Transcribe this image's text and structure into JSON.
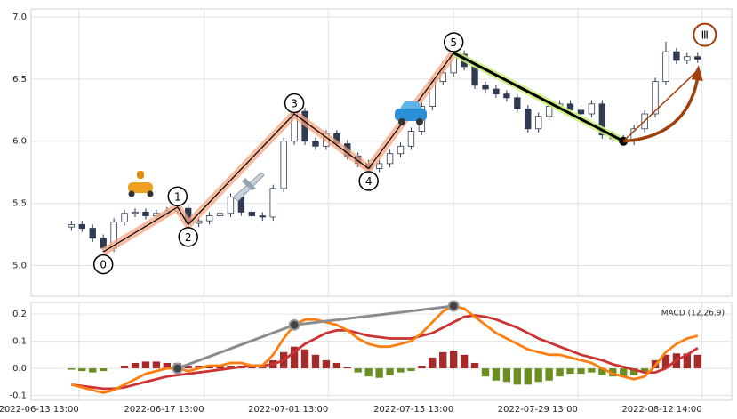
{
  "chart_data": [
    {
      "type": "candlestick",
      "open": [
        5.31,
        5.33,
        5.3,
        5.22,
        5.14,
        5.35,
        5.42,
        5.43,
        5.4,
        5.42,
        5.44,
        5.46,
        5.34,
        5.36,
        5.4,
        5.42,
        5.55,
        5.43,
        5.4,
        5.39,
        5.62,
        6.0,
        6.24,
        6.0,
        5.96,
        6.06,
        5.98,
        5.88,
        5.82,
        5.78,
        5.82,
        5.9,
        5.96,
        6.08,
        6.28,
        6.48,
        6.55,
        6.7,
        6.6,
        6.45,
        6.42,
        6.38,
        6.35,
        6.26,
        6.1,
        6.2,
        6.28,
        6.3,
        6.25,
        6.22,
        6.3,
        6.05,
        6.02,
        6.0,
        6.1,
        6.22,
        6.48,
        6.72,
        6.65,
        6.68
      ],
      "high": [
        5.36,
        5.36,
        5.33,
        5.25,
        5.38,
        5.45,
        5.46,
        5.46,
        5.45,
        5.47,
        5.49,
        5.49,
        5.39,
        5.43,
        5.45,
        5.58,
        5.58,
        5.46,
        5.43,
        5.65,
        6.03,
        6.38,
        6.27,
        6.03,
        6.09,
        6.09,
        6.01,
        5.91,
        5.85,
        5.85,
        5.93,
        5.99,
        6.11,
        6.31,
        6.51,
        6.58,
        6.73,
        6.73,
        6.63,
        6.48,
        6.45,
        6.41,
        6.38,
        6.29,
        6.23,
        6.31,
        6.33,
        6.33,
        6.28,
        6.33,
        6.33,
        6.08,
        6.05,
        6.13,
        6.25,
        6.51,
        6.8,
        6.75,
        6.71,
        6.71
      ],
      "low": [
        5.28,
        5.27,
        5.19,
        5.11,
        5.11,
        5.32,
        5.39,
        5.37,
        5.37,
        5.39,
        5.41,
        5.31,
        5.31,
        5.33,
        5.37,
        5.39,
        5.4,
        5.37,
        5.36,
        5.36,
        5.59,
        5.97,
        5.97,
        5.93,
        5.93,
        5.95,
        5.85,
        5.79,
        5.75,
        5.75,
        5.79,
        5.87,
        5.93,
        6.05,
        6.25,
        6.45,
        6.52,
        6.57,
        6.42,
        6.39,
        6.35,
        6.32,
        6.23,
        6.07,
        6.07,
        6.17,
        6.25,
        6.22,
        6.19,
        6.19,
        6.02,
        5.99,
        5.97,
        5.97,
        6.07,
        6.19,
        6.45,
        6.62,
        6.62,
        6.63
      ],
      "close": [
        5.33,
        5.3,
        5.22,
        5.14,
        5.35,
        5.42,
        5.43,
        5.4,
        5.42,
        5.44,
        5.46,
        5.34,
        5.36,
        5.4,
        5.42,
        5.55,
        5.43,
        5.4,
        5.39,
        5.62,
        6.0,
        6.24,
        6.0,
        5.96,
        6.06,
        5.98,
        5.88,
        5.82,
        5.78,
        5.82,
        5.9,
        5.96,
        6.08,
        6.28,
        6.48,
        6.55,
        6.7,
        6.6,
        6.45,
        6.42,
        6.38,
        6.35,
        6.26,
        6.1,
        6.2,
        6.28,
        6.3,
        6.25,
        6.22,
        6.3,
        6.05,
        6.02,
        6.0,
        6.1,
        6.22,
        6.48,
        6.72,
        6.65,
        6.68,
        6.66
      ],
      "up_color": "#ffffff",
      "down_color": "#2f3b52",
      "xlim": [
        -3.8,
        62.2
      ],
      "ylim": [
        4.76,
        7.05
      ],
      "yticks": [
        {
          "value": 5.0,
          "label": "5.0"
        },
        5.5,
        {
          "value": 6.0,
          "label": "6.0"
        },
        6.5,
        {
          "value": 7.0,
          "label": "7.0"
        }
      ],
      "grid": true,
      "waves": {
        "labels": [
          "0",
          "1",
          "2",
          "3",
          "4",
          "5"
        ],
        "x": [
          3,
          10,
          11,
          21,
          28,
          36
        ],
        "y": [
          5.11,
          5.47,
          5.33,
          6.22,
          5.78,
          6.71
        ],
        "label_side": [
          "below",
          "above",
          "below",
          "above",
          "below",
          "above"
        ],
        "color": "#f4a582"
      },
      "correction": {
        "x": [
          36,
          52
        ],
        "y": [
          6.71,
          6.0
        ],
        "color": "#c8f07a"
      },
      "projection": {
        "label": "Ⅲ",
        "x": [
          52,
          59
        ],
        "y": [
          6.0,
          6.57
        ],
        "color": "#a0400b"
      }
    },
    {
      "type": "macd",
      "label": "MACD (12,26,9)",
      "dif": {
        "color": "#ff7f0e",
        "values": [
          -0.06,
          -0.07,
          -0.08,
          -0.09,
          -0.08,
          -0.06,
          -0.04,
          -0.02,
          -0.01,
          0.0,
          0.0,
          -0.01,
          0.0,
          0.01,
          0.01,
          0.02,
          0.02,
          0.01,
          0.01,
          0.05,
          0.11,
          0.16,
          0.18,
          0.18,
          0.17,
          0.16,
          0.14,
          0.11,
          0.09,
          0.08,
          0.08,
          0.09,
          0.1,
          0.13,
          0.17,
          0.21,
          0.23,
          0.22,
          0.19,
          0.16,
          0.13,
          0.11,
          0.09,
          0.07,
          0.06,
          0.05,
          0.05,
          0.04,
          0.03,
          0.02,
          0.0,
          -0.02,
          -0.03,
          -0.04,
          -0.03,
          0.01,
          0.06,
          0.09,
          0.11,
          0.12
        ]
      },
      "dea": {
        "color": "#cc3333",
        "values": [
          -0.06,
          -0.065,
          -0.07,
          -0.075,
          -0.075,
          -0.07,
          -0.06,
          -0.05,
          -0.04,
          -0.03,
          -0.025,
          -0.02,
          -0.015,
          -0.01,
          -0.005,
          0.0,
          0.005,
          0.01,
          0.01,
          0.015,
          0.03,
          0.06,
          0.09,
          0.11,
          0.13,
          0.14,
          0.14,
          0.13,
          0.12,
          0.115,
          0.11,
          0.11,
          0.11,
          0.12,
          0.13,
          0.15,
          0.17,
          0.19,
          0.195,
          0.19,
          0.18,
          0.165,
          0.15,
          0.13,
          0.11,
          0.095,
          0.08,
          0.065,
          0.05,
          0.04,
          0.03,
          0.015,
          0.005,
          -0.005,
          -0.015,
          -0.015,
          0.0,
          0.03,
          0.05,
          0.075
        ]
      },
      "histogram": {
        "up_color": "#a52a2a",
        "down_color": "#6b8e23",
        "values": [
          -0.005,
          -0.01,
          -0.015,
          -0.01,
          0.0,
          0.01,
          0.02,
          0.025,
          0.025,
          0.02,
          0.02,
          0.01,
          0.01,
          0.01,
          0.01,
          0.01,
          0.01,
          0.005,
          0.005,
          0.03,
          0.06,
          0.08,
          0.07,
          0.05,
          0.03,
          0.02,
          0.005,
          -0.015,
          -0.03,
          -0.035,
          -0.025,
          -0.015,
          -0.01,
          0.01,
          0.04,
          0.06,
          0.065,
          0.05,
          0.02,
          -0.03,
          -0.045,
          -0.05,
          -0.06,
          -0.06,
          -0.05,
          -0.045,
          -0.03,
          -0.02,
          -0.02,
          -0.015,
          -0.025,
          -0.03,
          -0.03,
          -0.025,
          -0.01,
          0.03,
          0.05,
          0.055,
          0.055,
          0.05
        ]
      },
      "divergence_points": [
        10,
        21,
        36
      ],
      "divergence_color": "#8c8c8c",
      "xlim": [
        -3.8,
        62.2
      ],
      "xticks": [
        {
          "value": 0.7,
          "label": "2022-06-13 13:00"
        },
        {
          "value": 12.5,
          "label": "2022-06-17 13:00"
        },
        {
          "value": 24.2,
          "label": "2022-07-01 13:00"
        },
        {
          "value": 36.0,
          "label": "2022-07-15 13:00"
        },
        {
          "value": 47.7,
          "label": "2022-07-29 13:00"
        },
        {
          "value": 59.4,
          "label": "2022-08-12 14:00"
        }
      ],
      "ylim": [
        -0.118,
        0.243
      ],
      "yticks": [
        -0.1,
        {
          "value": 0,
          "label": "0.0"
        },
        0.1,
        0.2
      ],
      "grid": true
    }
  ]
}
